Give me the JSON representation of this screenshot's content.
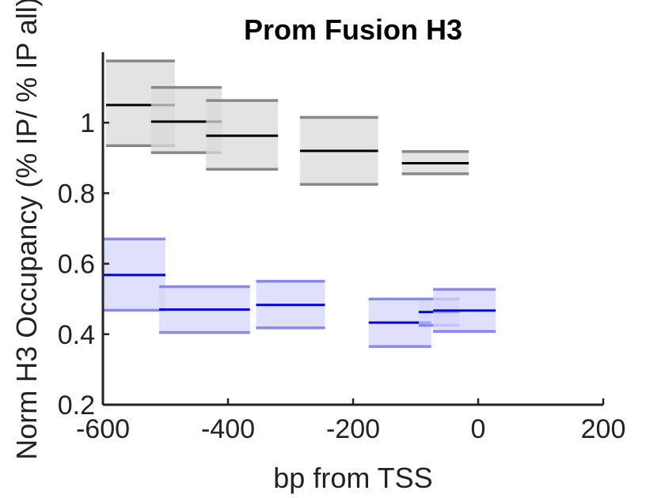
{
  "chart_data": {
    "type": "box",
    "title": "Prom Fusion H3",
    "xlabel": "bp from TSS",
    "ylabel": "Norm H3 Occupancy (% IP/ % IP all)",
    "xlim": [
      -600,
      200
    ],
    "ylim": [
      0.2,
      1.2
    ],
    "xticks": [
      -600,
      -400,
      -200,
      0,
      200
    ],
    "xtick_labels": [
      "-600",
      "-400",
      "-200",
      "0",
      "200"
    ],
    "yticks": [
      0.2,
      0.4,
      0.6,
      0.8,
      1.0
    ],
    "ytick_labels": [
      "0.2",
      "0.4",
      "0.6",
      "0.8",
      "1"
    ],
    "grid": false,
    "series": [
      {
        "color": "#888888",
        "fill": "#d9d9d9",
        "median_color": "#000000",
        "boxes": [
          {
            "x0": -595,
            "x1": -485,
            "low": 0.935,
            "median": 1.05,
            "high": 1.175
          },
          {
            "x0": -523,
            "x1": -410,
            "low": 0.915,
            "median": 1.003,
            "high": 1.1
          },
          {
            "x0": -435,
            "x1": -320,
            "low": 0.868,
            "median": 0.963,
            "high": 1.063
          },
          {
            "x0": -285,
            "x1": -160,
            "low": 0.825,
            "median": 0.92,
            "high": 1.015
          },
          {
            "x0": -122,
            "x1": -15,
            "low": 0.855,
            "median": 0.885,
            "high": 0.918
          }
        ]
      },
      {
        "color": "#8888ee",
        "fill": "#d6d6fb",
        "median_color": "#0000dd",
        "boxes": [
          {
            "x0": -600,
            "x1": -500,
            "low": 0.468,
            "median": 0.568,
            "high": 0.67
          },
          {
            "x0": -510,
            "x1": -365,
            "low": 0.405,
            "median": 0.47,
            "high": 0.535
          },
          {
            "x0": -355,
            "x1": -245,
            "low": 0.418,
            "median": 0.483,
            "high": 0.55
          },
          {
            "x0": -175,
            "x1": -75,
            "low": 0.365,
            "median": 0.433,
            "high": 0.5
          },
          {
            "x0": -95,
            "x1": -30,
            "low": 0.425,
            "median": 0.463,
            "high": 0.5
          },
          {
            "x0": -72,
            "x1": 28,
            "low": 0.408,
            "median": 0.467,
            "high": 0.527
          }
        ]
      }
    ]
  }
}
